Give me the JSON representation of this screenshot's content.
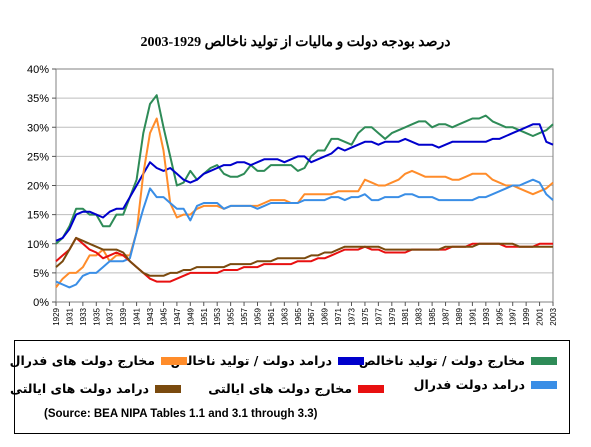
{
  "chart_data": {
    "type": "line",
    "title": "درصد بودجه دولت  و مالیات از تولید ناخالص   1929-2003",
    "xlabel": "",
    "ylabel": "",
    "ylim": [
      0,
      40
    ],
    "y_ticks": [
      "0%",
      "5%",
      "10%",
      "15%",
      "20%",
      "25%",
      "30%",
      "35%",
      "40%"
    ],
    "y_tick_values": [
      0,
      5,
      10,
      15,
      20,
      25,
      30,
      35,
      40
    ],
    "xlim": [
      1929,
      2003
    ],
    "x_ticks": [
      "1929",
      "1931",
      "1933",
      "1935",
      "1937",
      "1939",
      "1941",
      "1943",
      "1945",
      "1947",
      "1949",
      "1951",
      "1953",
      "1955",
      "1957",
      "1959",
      "1961",
      "1963",
      "1965",
      "1967",
      "1969",
      "1971",
      "1973",
      "1975",
      "1977",
      "1979",
      "1981",
      "1983",
      "1985",
      "1987",
      "1989",
      "1991",
      "1993",
      "1995",
      "1997",
      "1999",
      "2001",
      "2003"
    ],
    "grid": "horizontal",
    "legend": "bottom",
    "source": "(Source:  BEA NIPA Tables 1.1 and 3.1 through 3.3)",
    "series": [
      {
        "name": "مخارج دولت / تولید ناخالص",
        "color": "#2e8b57",
        "x": [
          1929,
          1930,
          1931,
          1932,
          1933,
          1934,
          1935,
          1936,
          1937,
          1938,
          1939,
          1940,
          1941,
          1942,
          1943,
          1944,
          1945,
          1946,
          1947,
          1948,
          1949,
          1950,
          1951,
          1952,
          1953,
          1954,
          1955,
          1956,
          1957,
          1958,
          1959,
          1960,
          1961,
          1962,
          1963,
          1964,
          1965,
          1966,
          1967,
          1968,
          1969,
          1970,
          1971,
          1972,
          1973,
          1974,
          1975,
          1976,
          1977,
          1978,
          1979,
          1980,
          1981,
          1982,
          1983,
          1984,
          1985,
          1986,
          1987,
          1988,
          1989,
          1990,
          1991,
          1992,
          1993,
          1994,
          1995,
          1996,
          1997,
          1998,
          1999,
          2000,
          2001,
          2002,
          2003
        ],
        "y": [
          10,
          11,
          13,
          16,
          16,
          15,
          15,
          13,
          13,
          15,
          15,
          18,
          21,
          29,
          34,
          35.5,
          30,
          25,
          20,
          20.5,
          22.5,
          21,
          22,
          23,
          23.5,
          22,
          21.5,
          21.5,
          22,
          23.5,
          22.5,
          22.5,
          23.5,
          23.5,
          23.5,
          23.5,
          22.5,
          23,
          25,
          26,
          26,
          28,
          28,
          27.5,
          27,
          29,
          30,
          30,
          29,
          28,
          29,
          29.5,
          30,
          30.5,
          31,
          31,
          30,
          30.5,
          30.5,
          30,
          30.5,
          31,
          31.5,
          31.5,
          32,
          31,
          30.5,
          30,
          30,
          29.5,
          29,
          28.5,
          29,
          29.5,
          30.5
        ]
      },
      {
        "name": "درامد دولت / تولید ناخالص",
        "color": "#0000cc",
        "x": [
          1929,
          1930,
          1931,
          1932,
          1933,
          1934,
          1935,
          1936,
          1937,
          1938,
          1939,
          1940,
          1941,
          1942,
          1943,
          1944,
          1945,
          1946,
          1947,
          1948,
          1949,
          1950,
          1951,
          1952,
          1953,
          1954,
          1955,
          1956,
          1957,
          1958,
          1959,
          1960,
          1961,
          1962,
          1963,
          1964,
          1965,
          1966,
          1967,
          1968,
          1969,
          1970,
          1971,
          1972,
          1973,
          1974,
          1975,
          1976,
          1977,
          1978,
          1979,
          1980,
          1981,
          1982,
          1983,
          1984,
          1985,
          1986,
          1987,
          1988,
          1989,
          1990,
          1991,
          1992,
          1993,
          1994,
          1995,
          1996,
          1997,
          1998,
          1999,
          2000,
          2001,
          2002,
          2003
        ],
        "y": [
          10.5,
          11,
          12.5,
          15,
          15.5,
          15.5,
          15,
          14.5,
          15.5,
          16,
          16,
          18,
          20,
          22,
          24,
          23,
          22.5,
          23,
          22,
          21,
          20.5,
          21,
          22,
          22.5,
          23,
          23.5,
          23.5,
          24,
          24,
          23.5,
          24,
          24.5,
          24.5,
          24.5,
          24,
          24.5,
          25,
          25,
          24,
          24.5,
          25,
          25.5,
          26.5,
          26,
          26.5,
          27,
          27.5,
          27.5,
          27,
          27.5,
          27.5,
          27.5,
          28,
          27.5,
          27,
          27,
          27,
          26.5,
          27,
          27.5,
          27.5,
          27.5,
          27.5,
          27.5,
          27.5,
          28,
          28,
          28.5,
          29,
          29.5,
          30,
          30.5,
          30.5,
          27.5,
          27
        ]
      },
      {
        "name": "مخارج دولت های فدرال",
        "color": "#ff8c2a",
        "x": [
          1929,
          1930,
          1931,
          1932,
          1933,
          1934,
          1935,
          1936,
          1937,
          1938,
          1939,
          1940,
          1941,
          1942,
          1943,
          1944,
          1945,
          1946,
          1947,
          1948,
          1949,
          1950,
          1951,
          1952,
          1953,
          1954,
          1955,
          1956,
          1957,
          1958,
          1959,
          1960,
          1961,
          1962,
          1963,
          1964,
          1965,
          1966,
          1967,
          1968,
          1969,
          1970,
          1971,
          1972,
          1973,
          1974,
          1975,
          1976,
          1977,
          1978,
          1979,
          1980,
          1981,
          1982,
          1983,
          1984,
          1985,
          1986,
          1987,
          1988,
          1989,
          1990,
          1991,
          1992,
          1993,
          1994,
          1995,
          1996,
          1997,
          1998,
          1999,
          2000,
          2001,
          2002,
          2003
        ],
        "y": [
          2.5,
          4,
          5,
          5,
          6,
          8,
          8,
          9,
          7,
          8,
          8,
          8,
          12,
          22,
          29,
          31.5,
          26,
          17,
          14.5,
          15,
          15,
          16,
          16.5,
          16.5,
          16.5,
          16,
          16.5,
          16.5,
          16.5,
          16.5,
          16.5,
          17,
          17.5,
          17.5,
          17.5,
          17,
          17,
          18.5,
          18.5,
          18.5,
          18.5,
          18.5,
          19,
          19,
          19,
          19,
          21,
          20.5,
          20,
          20,
          20.5,
          21,
          22,
          22.5,
          22,
          21.5,
          21.5,
          21.5,
          21.5,
          21,
          21,
          21.5,
          22,
          22,
          22,
          21,
          20.5,
          20,
          20,
          19.5,
          19,
          18.5,
          19,
          19.5,
          20.5
        ]
      },
      {
        "name": "درامد دولت فدرال",
        "color": "#3a8ee6",
        "x": [
          1929,
          1930,
          1931,
          1932,
          1933,
          1934,
          1935,
          1936,
          1937,
          1938,
          1939,
          1940,
          1941,
          1942,
          1943,
          1944,
          1945,
          1946,
          1947,
          1948,
          1949,
          1950,
          1951,
          1952,
          1953,
          1954,
          1955,
          1956,
          1957,
          1958,
          1959,
          1960,
          1961,
          1962,
          1963,
          1964,
          1965,
          1966,
          1967,
          1968,
          1969,
          1970,
          1971,
          1972,
          1973,
          1974,
          1975,
          1976,
          1977,
          1978,
          1979,
          1980,
          1981,
          1982,
          1983,
          1984,
          1985,
          1986,
          1987,
          1988,
          1989,
          1990,
          1991,
          1992,
          1993,
          1994,
          1995,
          1996,
          1997,
          1998,
          1999,
          2000,
          2001,
          2002,
          2003
        ],
        "y": [
          3.5,
          3,
          2.5,
          3,
          4.5,
          5,
          5,
          6,
          7,
          7,
          7,
          7.5,
          12,
          16,
          19.5,
          18,
          18,
          17,
          16,
          16,
          14,
          16.5,
          17,
          17,
          17,
          16,
          16.5,
          16.5,
          16.5,
          16.5,
          16,
          16.5,
          17,
          17,
          17,
          17,
          17,
          17.5,
          17.5,
          17.5,
          17.5,
          18,
          18,
          17.5,
          18,
          18,
          18.5,
          17.5,
          17.5,
          18,
          18,
          18,
          18.5,
          18.5,
          18,
          18,
          18,
          17.5,
          17.5,
          17.5,
          17.5,
          17.5,
          17.5,
          18,
          18,
          18.5,
          19,
          19.5,
          20,
          20,
          20.5,
          21,
          20.5,
          18.5,
          17.5
        ]
      },
      {
        "name": "مخارج دولت های ایالتی",
        "color": "#e81010",
        "x": [
          1929,
          1930,
          1931,
          1932,
          1933,
          1934,
          1935,
          1936,
          1937,
          1938,
          1939,
          1940,
          1941,
          1942,
          1943,
          1944,
          1945,
          1946,
          1947,
          1948,
          1949,
          1950,
          1951,
          1952,
          1953,
          1954,
          1955,
          1956,
          1957,
          1958,
          1959,
          1960,
          1961,
          1962,
          1963,
          1964,
          1965,
          1966,
          1967,
          1968,
          1969,
          1970,
          1971,
          1972,
          1973,
          1974,
          1975,
          1976,
          1977,
          1978,
          1979,
          1980,
          1981,
          1982,
          1983,
          1984,
          1985,
          1986,
          1987,
          1988,
          1989,
          1990,
          1991,
          1992,
          1993,
          1994,
          1995,
          1996,
          1997,
          1998,
          1999,
          2000,
          2001,
          2002,
          2003
        ],
        "y": [
          7,
          8,
          9,
          11,
          10,
          9,
          8.5,
          7.5,
          8,
          8.5,
          8,
          7,
          6,
          5,
          4,
          3.5,
          3.5,
          3.5,
          4,
          4.5,
          5,
          5,
          5,
          5,
          5,
          5.5,
          5.5,
          5.5,
          6,
          6,
          6,
          6.5,
          6.5,
          6.5,
          6.5,
          6.5,
          7,
          7,
          7,
          7.5,
          7.5,
          8,
          8.5,
          9,
          9,
          9,
          9.5,
          9,
          9,
          8.5,
          8.5,
          8.5,
          8.5,
          9,
          9,
          9,
          9,
          9,
          9,
          9.5,
          9.5,
          9.5,
          10,
          10,
          10,
          10,
          10,
          9.5,
          9.5,
          9.5,
          9.5,
          9.5,
          10,
          10,
          10
        ]
      },
      {
        "name": "درامد دولت  های ایالتی",
        "color": "#7a4a0e",
        "x": [
          1929,
          1930,
          1931,
          1932,
          1933,
          1934,
          1935,
          1936,
          1937,
          1938,
          1939,
          1940,
          1941,
          1942,
          1943,
          1944,
          1945,
          1946,
          1947,
          1948,
          1949,
          1950,
          1951,
          1952,
          1953,
          1954,
          1955,
          1956,
          1957,
          1958,
          1959,
          1960,
          1961,
          1962,
          1963,
          1964,
          1965,
          1966,
          1967,
          1968,
          1969,
          1970,
          1971,
          1972,
          1973,
          1974,
          1975,
          1976,
          1977,
          1978,
          1979,
          1980,
          1981,
          1982,
          1983,
          1984,
          1985,
          1986,
          1987,
          1988,
          1989,
          1990,
          1991,
          1992,
          1993,
          1994,
          1995,
          1996,
          1997,
          1998,
          1999,
          2000,
          2001,
          2002,
          2003
        ],
        "y": [
          6,
          7,
          9,
          11,
          10.5,
          10,
          9.5,
          9,
          9,
          9,
          8.5,
          7,
          6,
          5,
          4.5,
          4.5,
          4.5,
          5,
          5,
          5.5,
          5.5,
          6,
          6,
          6,
          6,
          6,
          6.5,
          6.5,
          6.5,
          6.5,
          7,
          7,
          7,
          7.5,
          7.5,
          7.5,
          7.5,
          7.5,
          8,
          8,
          8.5,
          8.5,
          9,
          9.5,
          9.5,
          9.5,
          9.5,
          9.5,
          9.5,
          9,
          9,
          9,
          9,
          9,
          9,
          9,
          9,
          9,
          9.5,
          9.5,
          9.5,
          9.5,
          9.5,
          10,
          10,
          10,
          10,
          10,
          10,
          9.5,
          9.5,
          9.5,
          9.5,
          9.5,
          9.5
        ]
      }
    ]
  }
}
